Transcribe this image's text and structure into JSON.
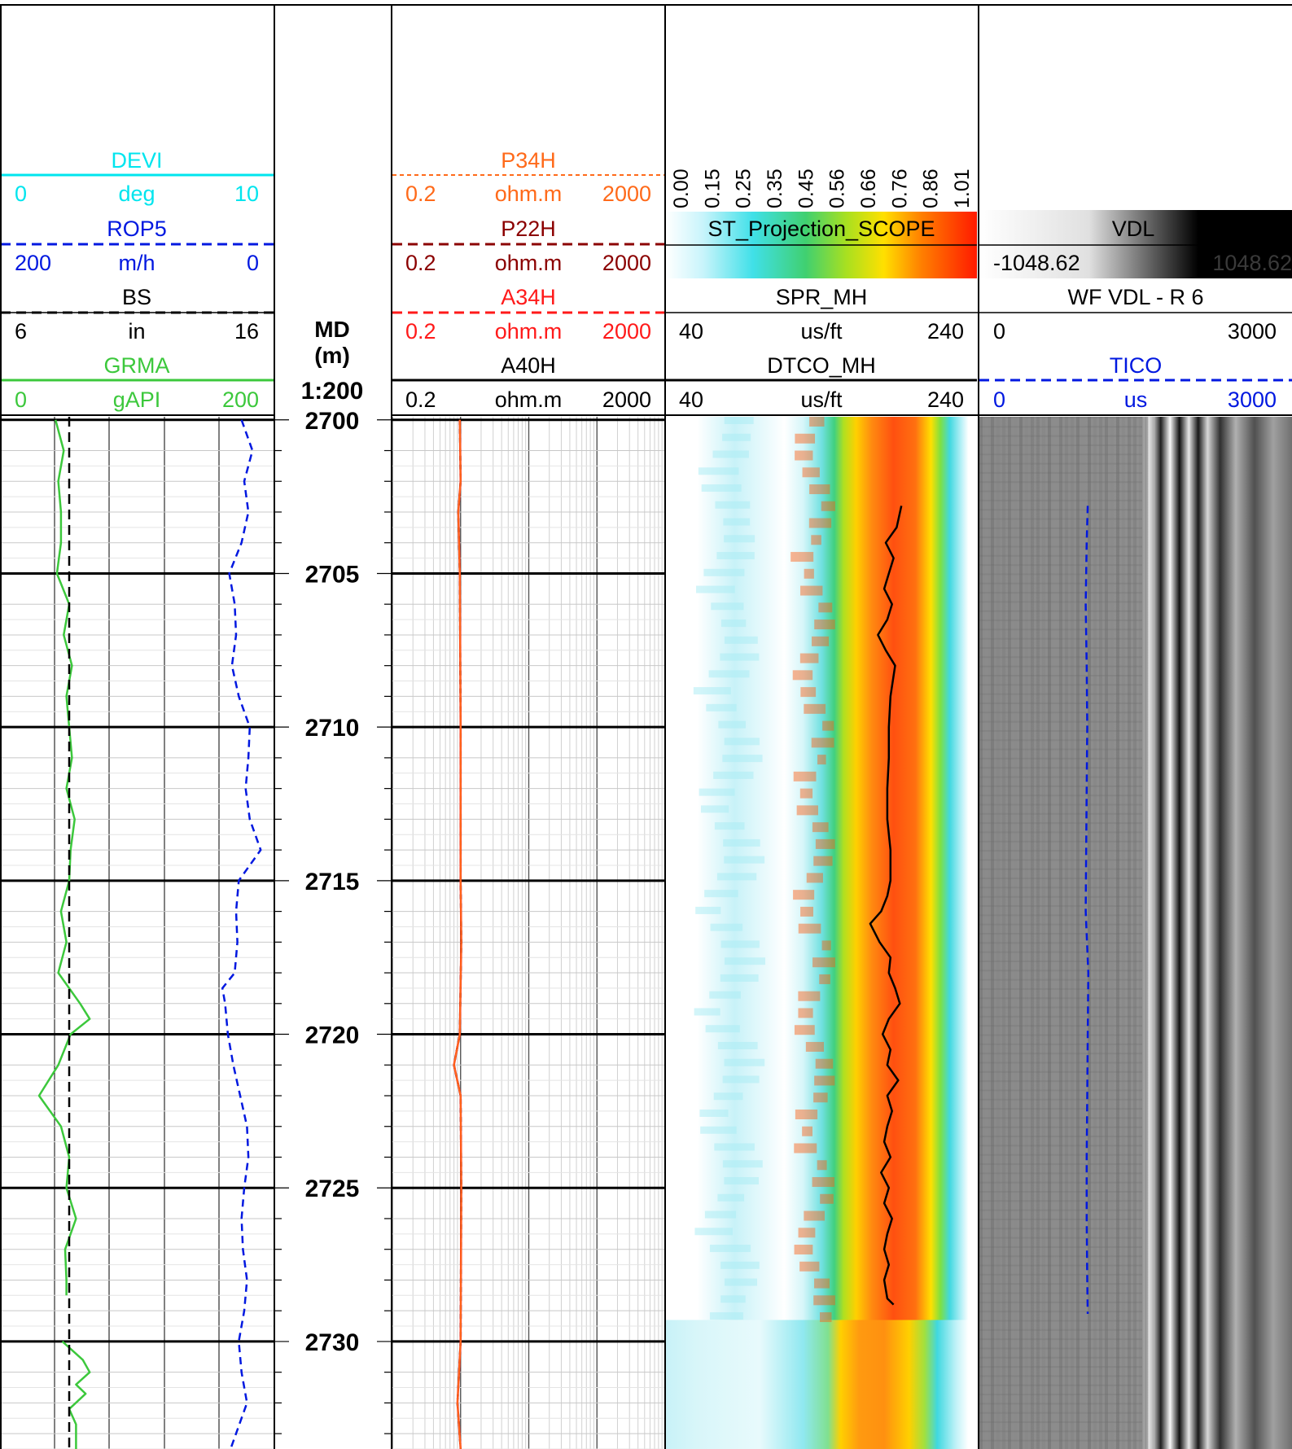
{
  "colors": {
    "devi": "#00e5ee",
    "rop5": "#0018e0",
    "bs": "#000000",
    "grma": "#3cc83c",
    "p34h": "#ff6a1a",
    "p22h": "#8b0000",
    "a34h": "#ff1a1a",
    "a40h": "#000000",
    "tico": "#0018e0"
  },
  "depth_track": {
    "title": "MD",
    "units": "(m)",
    "scale": "1:200",
    "labels": [
      "2700",
      "2705",
      "2710",
      "2715",
      "2720",
      "2725",
      "2730"
    ]
  },
  "headers": {
    "track1": [
      {
        "name": "DEVI",
        "min": "0",
        "unit": "deg",
        "max": "10"
      },
      {
        "name": "ROP5",
        "min": "200",
        "unit": "m/h",
        "max": "0"
      },
      {
        "name": "BS",
        "min": "6",
        "unit": "in",
        "max": "16"
      },
      {
        "name": "GRMA",
        "min": "0",
        "unit": "gAPI",
        "max": "200"
      }
    ],
    "track3": [
      {
        "name": "P34H",
        "min": "0.2",
        "unit": "ohm.m",
        "max": "2000"
      },
      {
        "name": "P22H",
        "min": "0.2",
        "unit": "ohm.m",
        "max": "2000"
      },
      {
        "name": "A34H",
        "min": "0.2",
        "unit": "ohm.m",
        "max": "2000"
      },
      {
        "name": "A40H",
        "min": "0.2",
        "unit": "ohm.m",
        "max": "2000"
      }
    ],
    "track4": {
      "scale_ticks": [
        "0.00",
        "0.15",
        "0.25",
        "0.35",
        "0.45",
        "0.56",
        "0.66",
        "0.76",
        "0.86",
        "1.01"
      ],
      "image_name": "ST_Projection_SCOPE",
      "spr_name": "SPR_MH",
      "spr_min": "40",
      "spr_unit": "us/ft",
      "spr_max": "240",
      "dtco_name": "DTCO_MH",
      "dtco_min": "40",
      "dtco_unit": "us/ft",
      "dtco_max": "240"
    },
    "track5": {
      "vdl_name": "VDL",
      "vdl_min": "-1048.62",
      "vdl_max": "1048.62",
      "wf_name": "WF VDL - R 6",
      "wf_min": "0",
      "wf_max": "3000",
      "tico_name": "TICO",
      "tico_min": "0",
      "tico_unit": "us",
      "tico_max": "3000"
    }
  },
  "chart_data": {
    "type": "line",
    "depth_unit": "m",
    "depth_range": [
      2699.9,
      2733.5
    ],
    "series": [
      {
        "name": "GRMA",
        "unit": "gAPI",
        "range": [
          0,
          200
        ],
        "points": [
          [
            2700,
            40
          ],
          [
            2701,
            46
          ],
          [
            2702,
            42
          ],
          [
            2703,
            44
          ],
          [
            2704,
            44
          ],
          [
            2705,
            41
          ],
          [
            2706,
            50
          ],
          [
            2707,
            46
          ],
          [
            2708,
            52
          ],
          [
            2709,
            48
          ],
          [
            2710,
            50
          ],
          [
            2711,
            52
          ],
          [
            2712,
            48
          ],
          [
            2713,
            54
          ],
          [
            2714,
            51
          ],
          [
            2715,
            50
          ],
          [
            2716,
            44
          ],
          [
            2717,
            48
          ],
          [
            2718,
            42
          ],
          [
            2719,
            58
          ],
          [
            2719.5,
            65
          ],
          [
            2720,
            51
          ],
          [
            2721,
            42
          ],
          [
            2722,
            28
          ],
          [
            2723,
            44
          ],
          [
            2724,
            50
          ],
          [
            2725,
            48
          ],
          [
            2726,
            55
          ],
          [
            2727,
            47
          ],
          [
            2728,
            48
          ],
          [
            2728.5,
            48
          ]
        ]
      },
      {
        "name": "GRMA",
        "unit": "gAPI",
        "range": [
          0,
          200
        ],
        "points": [
          [
            2730,
            45
          ],
          [
            2730.6,
            60
          ],
          [
            2731,
            65
          ],
          [
            2731.4,
            55
          ],
          [
            2731.7,
            62
          ],
          [
            2732.2,
            50
          ],
          [
            2732.7,
            55
          ],
          [
            2733.5,
            55
          ]
        ]
      },
      {
        "name": "ROP5",
        "unit": "m/h",
        "range": [
          200,
          0
        ],
        "points": [
          [
            2700,
            24
          ],
          [
            2701,
            16
          ],
          [
            2702,
            22
          ],
          [
            2703,
            19
          ],
          [
            2704,
            24
          ],
          [
            2705,
            33
          ],
          [
            2706,
            29
          ],
          [
            2707,
            28
          ],
          [
            2708,
            31
          ],
          [
            2709,
            26
          ],
          [
            2710,
            18
          ],
          [
            2711,
            19
          ],
          [
            2712,
            21
          ],
          [
            2713,
            18
          ],
          [
            2714,
            10
          ],
          [
            2715,
            26
          ],
          [
            2716,
            28
          ],
          [
            2717,
            27
          ],
          [
            2718,
            29
          ],
          [
            2718.5,
            38
          ],
          [
            2719,
            36
          ],
          [
            2720,
            34
          ],
          [
            2721,
            30
          ],
          [
            2722,
            25
          ],
          [
            2723,
            20
          ],
          [
            2724,
            19
          ],
          [
            2725,
            22
          ],
          [
            2726,
            24
          ],
          [
            2727,
            23
          ],
          [
            2728,
            20
          ],
          [
            2729,
            22
          ],
          [
            2730,
            26
          ],
          [
            2731,
            24
          ],
          [
            2732,
            20
          ],
          [
            2733.5,
            32
          ]
        ]
      },
      {
        "name": "BS",
        "unit": "in",
        "range": [
          6,
          16
        ],
        "points": [
          [
            2699.9,
            8.5
          ],
          [
            2733.5,
            8.5
          ]
        ]
      },
      {
        "name": "P34H",
        "unit": "ohm.m",
        "range": [
          0.2,
          2000
        ],
        "log": true,
        "points": [
          [
            2700,
            1.95
          ],
          [
            2702,
            2.0
          ],
          [
            2703,
            1.85
          ],
          [
            2705,
            1.95
          ],
          [
            2710,
            2.0
          ],
          [
            2715,
            2.0
          ],
          [
            2717,
            2.05
          ],
          [
            2720,
            1.95
          ],
          [
            2721,
            1.6
          ],
          [
            2722,
            2.0
          ],
          [
            2725,
            2.05
          ],
          [
            2730,
            2.0
          ],
          [
            2732,
            1.8
          ],
          [
            2733.5,
            2.0
          ]
        ]
      },
      {
        "name": "DTCO_MH",
        "unit": "us/ft",
        "range": [
          40,
          240
        ],
        "points": [
          [
            2702.8,
            191
          ],
          [
            2703.5,
            188
          ],
          [
            2704,
            181
          ],
          [
            2704.5,
            186
          ],
          [
            2705,
            183
          ],
          [
            2705.5,
            180
          ],
          [
            2706,
            185
          ],
          [
            2706.5,
            182
          ],
          [
            2707,
            176
          ],
          [
            2707.5,
            181
          ],
          [
            2708,
            187
          ],
          [
            2709,
            184
          ],
          [
            2710,
            183
          ],
          [
            2711,
            183
          ],
          [
            2712,
            182
          ],
          [
            2713,
            182
          ],
          [
            2714,
            184
          ],
          [
            2715,
            184
          ],
          [
            2715.5,
            182
          ],
          [
            2716,
            178
          ],
          [
            2716.4,
            171
          ],
          [
            2717,
            177
          ],
          [
            2717.5,
            184
          ],
          [
            2718,
            183
          ],
          [
            2718.5,
            187
          ],
          [
            2719,
            190
          ],
          [
            2719.5,
            183
          ],
          [
            2720,
            179
          ],
          [
            2720.5,
            184
          ],
          [
            2721,
            182
          ],
          [
            2721.5,
            189
          ],
          [
            2722,
            182
          ],
          [
            2722.5,
            185
          ],
          [
            2723,
            182
          ],
          [
            2723.5,
            180
          ],
          [
            2724,
            184
          ],
          [
            2724.5,
            178
          ],
          [
            2725,
            183
          ],
          [
            2725.5,
            180
          ],
          [
            2726,
            185
          ],
          [
            2726.5,
            182
          ],
          [
            2727,
            180
          ],
          [
            2727.5,
            183
          ],
          [
            2728,
            180
          ],
          [
            2728.6,
            182
          ],
          [
            2728.8,
            186
          ]
        ]
      },
      {
        "name": "TICO",
        "unit": "us",
        "range": [
          0,
          3000
        ],
        "points": [
          [
            2702.8,
            1040
          ],
          [
            2704,
            1030
          ],
          [
            2706,
            1020
          ],
          [
            2708,
            1030
          ],
          [
            2710,
            1035
          ],
          [
            2712,
            1030
          ],
          [
            2714,
            1025
          ],
          [
            2716,
            1020
          ],
          [
            2718,
            1045
          ],
          [
            2720,
            1040
          ],
          [
            2722,
            1035
          ],
          [
            2724,
            1030
          ],
          [
            2726,
            1030
          ],
          [
            2728,
            1035
          ],
          [
            2729.1,
            1040
          ]
        ]
      }
    ],
    "image_tracks": [
      {
        "name": "ST_Projection_SCOPE",
        "scale": [
          0.0,
          1.01
        ],
        "x_range": [
          40,
          240
        ],
        "x_unit": "us/ft"
      },
      {
        "name": "VDL",
        "scale": [
          -1048.62,
          1048.62
        ],
        "x_range": [
          0,
          3000
        ],
        "x_unit": "us"
      }
    ]
  }
}
